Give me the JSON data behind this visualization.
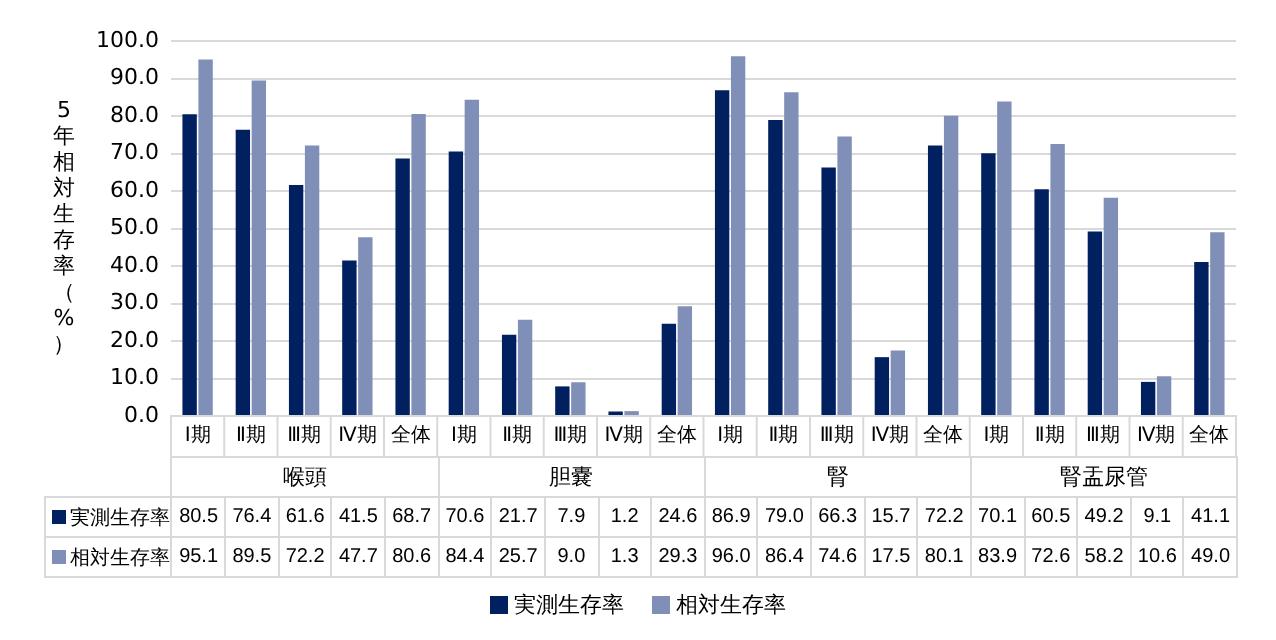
{
  "chart_data": {
    "type": "bar",
    "ylabel": "5年相対生存率（%）",
    "categories": [
      "Ⅰ期",
      "Ⅱ期",
      "Ⅲ期",
      "Ⅳ期",
      "全体",
      "Ⅰ期",
      "Ⅱ期",
      "Ⅲ期",
      "Ⅳ期",
      "全体",
      "Ⅰ期",
      "Ⅱ期",
      "Ⅲ期",
      "Ⅳ期",
      "全体",
      "Ⅰ期",
      "Ⅱ期",
      "Ⅲ期",
      "Ⅳ期",
      "全体"
    ],
    "annotations": [
      "喉頭",
      "胆嚢",
      "腎",
      "腎盂尿管"
    ],
    "series": [
      {
        "name": "実測生存率",
        "color": "#002060",
        "values": [
          80.5,
          76.4,
          61.6,
          41.5,
          68.7,
          70.6,
          21.7,
          7.9,
          1.2,
          24.6,
          86.9,
          79.0,
          66.3,
          15.7,
          72.2,
          70.1,
          60.5,
          49.2,
          9.1,
          41.1
        ],
        "value_labels": [
          "80.5",
          "76.4",
          "61.6",
          "41.5",
          "68.7",
          "70.6",
          "21.7",
          "7.9",
          "1.2",
          "24.6",
          "86.9",
          "79.0",
          "66.3",
          "15.7",
          "72.2",
          "70.1",
          "60.5",
          "49.2",
          "9.1",
          "41.1"
        ]
      },
      {
        "name": "相対生存率",
        "color": "#7f8fb8",
        "values": [
          95.1,
          89.5,
          72.2,
          47.7,
          80.6,
          84.4,
          25.7,
          9.0,
          1.3,
          29.3,
          96.0,
          86.4,
          74.6,
          17.5,
          80.1,
          83.9,
          72.6,
          58.2,
          10.6,
          49.0
        ],
        "value_labels": [
          "95.1",
          "89.5",
          "72.2",
          "47.7",
          "80.6",
          "84.4",
          "25.7",
          "9.0",
          "1.3",
          "29.3",
          "96.0",
          "86.4",
          "74.6",
          "17.5",
          "80.1",
          "83.9",
          "72.6",
          "58.2",
          "10.6",
          "49.0"
        ]
      }
    ],
    "ylim": [
      0,
      100
    ],
    "yticks": [
      {
        "value": 0,
        "label": "0.0"
      },
      {
        "value": 10,
        "label": "10.0"
      },
      {
        "value": 20,
        "label": "20.0"
      },
      {
        "value": 30,
        "label": "30.0"
      },
      {
        "value": 40,
        "label": "40.0"
      },
      {
        "value": 50,
        "label": "50.0"
      },
      {
        "value": 60,
        "label": "60.0"
      },
      {
        "value": 70,
        "label": "70.0"
      },
      {
        "value": 80,
        "label": "80.0"
      },
      {
        "value": 90,
        "label": "90.0"
      },
      {
        "value": 100,
        "label": "100.0"
      }
    ],
    "grid": "y",
    "legend": "bottom"
  }
}
